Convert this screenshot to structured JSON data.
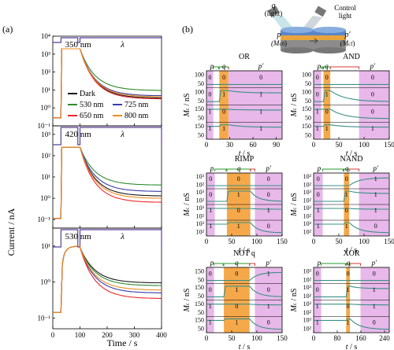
{
  "panel_a": {
    "label": "(a)",
    "ylabel": "Current / nA",
    "xlabel": "Time / s",
    "xticks": [
      "0",
      "100",
      "200",
      "300",
      "400"
    ],
    "lambda_label": "λ",
    "legend": [
      {
        "name": "Dark",
        "color": "#1a1a1a"
      },
      {
        "name": "530 nm",
        "color": "#2e8b2e"
      },
      {
        "name": "725 nm",
        "color": "#3a3aa8"
      },
      {
        "name": "650 nm",
        "color": "#e8282a"
      },
      {
        "name": "800 nm",
        "color": "#f08a1c"
      }
    ],
    "subplots": [
      {
        "pulse_label": "350 nm",
        "yticks": [
          "10⁻¹",
          "10⁰",
          "10¹",
          "10²",
          "10³",
          "10⁴"
        ],
        "ylog": [
          -1,
          4
        ],
        "peak_exp": 3.3,
        "end_values": {
          "Dark": 3.6,
          "530 nm": 9.5,
          "725 nm": 4.8,
          "650 nm": 3.2,
          "800 nm": 4.2
        }
      },
      {
        "pulse_label": "420 nm",
        "yticks": [
          "10⁻¹",
          "10⁰",
          "10¹",
          "10²",
          "10³"
        ],
        "ylog": [
          -1.4,
          3.4
        ],
        "peak_exp": 2.4,
        "end_values": {
          "Dark": 1.3,
          "530 nm": 4.2,
          "725 nm": 2.1,
          "650 nm": 0.65,
          "800 nm": 1.0
        }
      },
      {
        "pulse_label": "530 nm",
        "yticks": [
          "10⁻¹",
          "10⁰",
          "10¹"
        ],
        "ylog": [
          -1.3,
          1.5
        ],
        "peak_exp": 1.0,
        "end_values": {
          "Dark": 0.95,
          "530 nm": 0.8,
          "725 nm": 0.5,
          "650 nm": 0.35,
          "800 nm": 0.6
        }
      }
    ]
  },
  "panel_b": {
    "label": "(b)",
    "schematic": {
      "q_label": "q",
      "q_sub": "(light)",
      "control_label": "Control",
      "control_sub": "light",
      "p_label": "p",
      "p_sub": "(M",
      "p_sub2": "c0",
      "p_sub3": ")",
      "pp_label": "p′",
      "pp_sub": "(M",
      "pp_sub2": "cf",
      "pp_sub3": ")"
    },
    "ylabel": "M",
    "ylabel_sub": "c",
    "ylabel_unit": " / nS",
    "xlabel": "t",
    "xlabel_unit": " / s",
    "gates": [
      {
        "title": "OR",
        "xticks": [
          "0",
          "30",
          "60",
          "90"
        ],
        "p": "p",
        "q": "q",
        "pp": "p′",
        "rows": [
          {
            "yt": [
              "100",
              "50"
            ],
            "b": [
              "0",
              "0",
              "0"
            ]
          },
          {
            "yt": [
              "100",
              "50"
            ],
            "b": [
              "0",
              "1",
              "1"
            ]
          },
          {
            "yt": [
              "150",
              "50"
            ],
            "b": [
              "1",
              "0",
              "1"
            ]
          },
          {
            "yt": [
              "150",
              "50"
            ],
            "b": [
              "1",
              "1",
              "1"
            ]
          }
        ]
      },
      {
        "title": "AND",
        "xticks": [
          "0",
          "50",
          "100",
          "150"
        ],
        "p": "p",
        "q": "q",
        "pp": "p′",
        "rows": [
          {
            "yt": [
              "100",
              "50"
            ],
            "b": [
              "0",
              "0",
              "0"
            ]
          },
          {
            "yt": [
              "100",
              "50"
            ],
            "b": [
              "0",
              "1",
              "0"
            ]
          },
          {
            "yt": [
              "150",
              "50"
            ],
            "b": [
              "1",
              "0",
              "0"
            ]
          },
          {
            "yt": [
              "150",
              "50"
            ],
            "b": [
              "1",
              "1",
              "1"
            ]
          }
        ]
      },
      {
        "title": "RIMP",
        "xticks": [
          "0",
          "50",
          "100",
          "150"
        ],
        "p": "p",
        "q": "q",
        "pp": "p′",
        "rows": [
          {
            "yt": [
              "10³",
              "10²"
            ],
            "b": [
              "0",
              "0",
              "0"
            ]
          },
          {
            "yt": [
              "10³",
              "10²"
            ],
            "b": [
              "0",
              "1",
              "0"
            ]
          },
          {
            "yt": [
              "10³",
              "10²"
            ],
            "b": [
              "1",
              "0",
              "1"
            ]
          },
          {
            "yt": [
              "10³",
              "10²"
            ],
            "b": [
              "1",
              "1",
              "0"
            ]
          }
        ]
      },
      {
        "title": "NAND",
        "xticks": [
          "0",
          "50",
          "100",
          "150"
        ],
        "p": "p",
        "q": "q",
        "pp": "p′",
        "rows": [
          {
            "yt": [
              "10³",
              "10²"
            ],
            "b": [
              "0",
              "0",
              "1"
            ]
          },
          {
            "yt": [
              "10³",
              "10²"
            ],
            "b": [
              "0",
              "1",
              "1"
            ]
          },
          {
            "yt": [
              "10³",
              "10²"
            ],
            "b": [
              "1",
              "0",
              "1"
            ]
          },
          {
            "yt": [
              "10³",
              "10²"
            ],
            "b": [
              "1",
              "1",
              "0"
            ]
          }
        ]
      },
      {
        "title": "NOT q",
        "xticks": [
          "0",
          "50",
          "100",
          "150"
        ],
        "p": "p",
        "q": "q",
        "pp": "p′",
        "rows": [
          {
            "yt": [
              "150",
              "50"
            ],
            "b": [
              "0",
              "0",
              "1"
            ]
          },
          {
            "yt": [
              "150",
              "50"
            ],
            "b": [
              "0",
              "1",
              "0"
            ]
          },
          {
            "yt": [
              "150",
              "50"
            ],
            "b": [
              "1",
              "0",
              "1"
            ]
          },
          {
            "yt": [
              "150",
              "50"
            ],
            "b": [
              "1",
              "1",
              "0"
            ]
          }
        ]
      },
      {
        "title": "XOR",
        "xticks": [
          "0",
          "80",
          "160",
          "240"
        ],
        "p": "p",
        "q": "q",
        "pp": "p′",
        "rows": [
          {
            "yt": [
              "10³",
              "10²"
            ],
            "b": [
              "0",
              "0",
              "0"
            ]
          },
          {
            "yt": [
              "10³",
              "10²"
            ],
            "b": [
              "0",
              "1",
              "1"
            ]
          },
          {
            "yt": [
              "10³",
              "10²"
            ],
            "b": [
              "1",
              "0",
              "1"
            ]
          },
          {
            "yt": [
              "10³",
              "10²"
            ],
            "b": [
              "1",
              "1",
              "0"
            ]
          }
        ]
      }
    ],
    "colors": {
      "p_band": "#e7b8e9",
      "q_band": "#f5a84a",
      "trace": "#3a8f86",
      "q_bracket": "#2a9a2a",
      "pp_bracket": "#d43a3a",
      "pulse": "#5a3d99"
    }
  }
}
